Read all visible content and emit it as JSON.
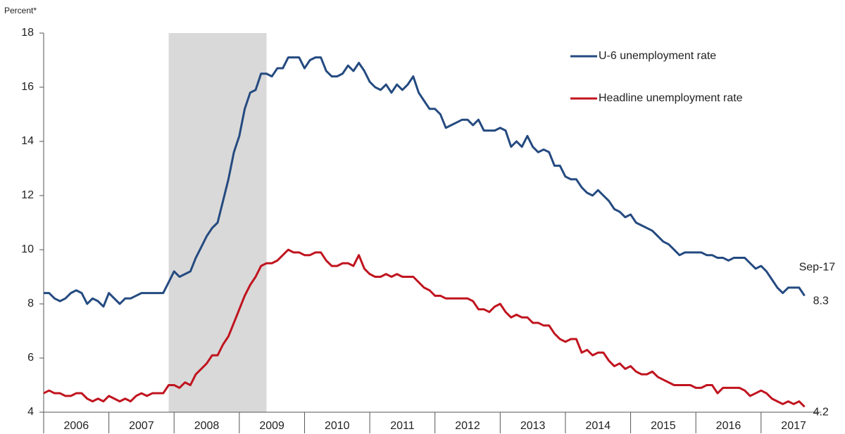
{
  "chart_data": {
    "type": "line",
    "y_label": "Percent*",
    "annotation": "Sep-17",
    "legend": "upper right",
    "shaded_range": [
      2007.917,
      2009.417
    ],
    "shade_color": "#d9d9d9",
    "xlim": [
      2006,
      2017.92
    ],
    "xticks": [
      {
        "value": 2006,
        "label": "2006"
      },
      {
        "value": 2007,
        "label": "2007"
      },
      {
        "value": 2008,
        "label": "2008"
      },
      {
        "value": 2009,
        "label": "2009"
      },
      {
        "value": 2010,
        "label": "2010"
      },
      {
        "value": 2011,
        "label": "2011"
      },
      {
        "value": 2012,
        "label": "2012"
      },
      {
        "value": 2013,
        "label": "2013"
      },
      {
        "value": 2014,
        "label": "2014"
      },
      {
        "value": 2015,
        "label": "2015"
      },
      {
        "value": 2016,
        "label": "2016"
      },
      {
        "value": 2017,
        "label": "2017"
      }
    ],
    "ylim": [
      4,
      18
    ],
    "yticks": [
      4,
      6,
      8,
      10,
      12,
      14,
      16,
      18
    ],
    "x": [
      2006,
      2006.083,
      2006.167,
      2006.25,
      2006.333,
      2006.417,
      2006.5,
      2006.583,
      2006.667,
      2006.75,
      2006.833,
      2006.917,
      2007,
      2007.083,
      2007.167,
      2007.25,
      2007.333,
      2007.417,
      2007.5,
      2007.583,
      2007.667,
      2007.75,
      2007.833,
      2007.917,
      2008,
      2008.083,
      2008.167,
      2008.25,
      2008.333,
      2008.417,
      2008.5,
      2008.583,
      2008.667,
      2008.75,
      2008.833,
      2008.917,
      2009,
      2009.083,
      2009.167,
      2009.25,
      2009.333,
      2009.417,
      2009.5,
      2009.583,
      2009.667,
      2009.75,
      2009.833,
      2009.917,
      2010,
      2010.083,
      2010.167,
      2010.25,
      2010.333,
      2010.417,
      2010.5,
      2010.583,
      2010.667,
      2010.75,
      2010.833,
      2010.917,
      2011,
      2011.083,
      2011.167,
      2011.25,
      2011.333,
      2011.417,
      2011.5,
      2011.583,
      2011.667,
      2011.75,
      2011.833,
      2011.917,
      2012,
      2012.083,
      2012.167,
      2012.25,
      2012.333,
      2012.417,
      2012.5,
      2012.583,
      2012.667,
      2012.75,
      2012.833,
      2012.917,
      2013,
      2013.083,
      2013.167,
      2013.25,
      2013.333,
      2013.417,
      2013.5,
      2013.583,
      2013.667,
      2013.75,
      2013.833,
      2013.917,
      2014,
      2014.083,
      2014.167,
      2014.25,
      2014.333,
      2014.417,
      2014.5,
      2014.583,
      2014.667,
      2014.75,
      2014.833,
      2014.917,
      2015,
      2015.083,
      2015.167,
      2015.25,
      2015.333,
      2015.417,
      2015.5,
      2015.583,
      2015.667,
      2015.75,
      2015.833,
      2015.917,
      2016,
      2016.083,
      2016.167,
      2016.25,
      2016.333,
      2016.417,
      2016.5,
      2016.583,
      2016.667,
      2016.75,
      2016.833,
      2016.917,
      2017,
      2017.083,
      2017.167,
      2017.25,
      2017.333,
      2017.417,
      2017.5,
      2017.583,
      2017.667
    ],
    "series": [
      {
        "name": "U-6 unemployment rate",
        "color": "#244a80",
        "values": [
          8.4,
          8.4,
          8.2,
          8.1,
          8.2,
          8.4,
          8.5,
          8.4,
          8.0,
          8.2,
          8.1,
          7.9,
          8.4,
          8.2,
          8.0,
          8.2,
          8.2,
          8.3,
          8.4,
          8.4,
          8.4,
          8.4,
          8.4,
          8.8,
          9.2,
          9.0,
          9.1,
          9.2,
          9.7,
          10.1,
          10.5,
          10.8,
          11.0,
          11.8,
          12.6,
          13.6,
          14.2,
          15.2,
          15.8,
          15.9,
          16.5,
          16.5,
          16.4,
          16.7,
          16.7,
          17.1,
          17.1,
          17.1,
          16.7,
          17.0,
          17.1,
          17.1,
          16.6,
          16.4,
          16.4,
          16.5,
          16.8,
          16.6,
          16.9,
          16.6,
          16.2,
          16.0,
          15.9,
          16.1,
          15.8,
          16.1,
          15.9,
          16.1,
          16.4,
          15.8,
          15.5,
          15.2,
          15.2,
          15.0,
          14.5,
          14.6,
          14.7,
          14.8,
          14.8,
          14.6,
          14.8,
          14.4,
          14.4,
          14.4,
          14.5,
          14.4,
          13.8,
          14.0,
          13.8,
          14.2,
          13.8,
          13.6,
          13.7,
          13.6,
          13.1,
          13.1,
          12.7,
          12.6,
          12.6,
          12.3,
          12.1,
          12.0,
          12.2,
          12.0,
          11.8,
          11.5,
          11.4,
          11.2,
          11.3,
          11.0,
          10.9,
          10.8,
          10.7,
          10.5,
          10.3,
          10.2,
          10.0,
          9.8,
          9.9,
          9.9,
          9.9,
          9.9,
          9.8,
          9.8,
          9.7,
          9.7,
          9.6,
          9.7,
          9.7,
          9.7,
          9.5,
          9.3,
          9.4,
          9.2,
          8.9,
          8.6,
          8.4,
          8.6,
          8.6,
          8.6,
          8.3
        ]
      },
      {
        "name": "Headline unemployment rate",
        "color": "#c0141f",
        "values": [
          4.7,
          4.8,
          4.7,
          4.7,
          4.6,
          4.6,
          4.7,
          4.7,
          4.5,
          4.4,
          4.5,
          4.4,
          4.6,
          4.5,
          4.4,
          4.5,
          4.4,
          4.6,
          4.7,
          4.6,
          4.7,
          4.7,
          4.7,
          5.0,
          5.0,
          4.9,
          5.1,
          5.0,
          5.4,
          5.6,
          5.8,
          6.1,
          6.1,
          6.5,
          6.8,
          7.3,
          7.8,
          8.3,
          8.7,
          9.0,
          9.4,
          9.5,
          9.5,
          9.6,
          9.8,
          10.0,
          9.9,
          9.9,
          9.8,
          9.8,
          9.9,
          9.9,
          9.6,
          9.4,
          9.4,
          9.5,
          9.5,
          9.4,
          9.8,
          9.3,
          9.1,
          9.0,
          9.0,
          9.1,
          9.0,
          9.1,
          9.0,
          9.0,
          9.0,
          8.8,
          8.6,
          8.5,
          8.3,
          8.3,
          8.2,
          8.2,
          8.2,
          8.2,
          8.2,
          8.1,
          7.8,
          7.8,
          7.7,
          7.9,
          8.0,
          7.7,
          7.5,
          7.6,
          7.5,
          7.5,
          7.3,
          7.3,
          7.2,
          7.2,
          6.9,
          6.7,
          6.6,
          6.7,
          6.7,
          6.2,
          6.3,
          6.1,
          6.2,
          6.2,
          5.9,
          5.7,
          5.8,
          5.6,
          5.7,
          5.5,
          5.4,
          5.4,
          5.5,
          5.3,
          5.2,
          5.1,
          5.0,
          5.0,
          5.0,
          5.0,
          4.9,
          4.9,
          5.0,
          5.0,
          4.7,
          4.9,
          4.9,
          4.9,
          4.9,
          4.8,
          4.6,
          4.7,
          4.8,
          4.7,
          4.5,
          4.4,
          4.3,
          4.4,
          4.3,
          4.4,
          4.2
        ]
      }
    ]
  }
}
